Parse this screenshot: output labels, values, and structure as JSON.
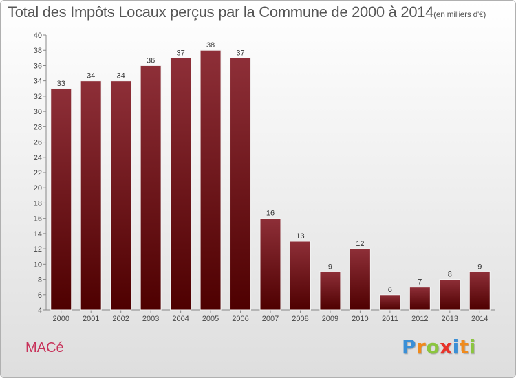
{
  "chart_data": {
    "type": "bar",
    "title": "Total des Impôts Locaux perçus par la Commune de 2000 à 2014",
    "unit_note": "(en milliers d'€)",
    "xlabel": "",
    "ylabel": "",
    "categories": [
      "2000",
      "2001",
      "2002",
      "2003",
      "2004",
      "2005",
      "2006",
      "2007",
      "2008",
      "2009",
      "2010",
      "2011",
      "2012",
      "2013",
      "2014"
    ],
    "values": [
      33,
      34,
      34,
      36,
      37,
      38,
      37,
      16,
      13,
      9,
      12,
      6,
      7,
      8,
      9
    ],
    "ylim": [
      4,
      40
    ],
    "yticks": [
      4,
      6,
      8,
      10,
      12,
      14,
      16,
      18,
      20,
      22,
      24,
      26,
      28,
      30,
      32,
      34,
      36,
      38,
      40
    ],
    "grid": false,
    "bar_color": "#7a1a24"
  },
  "footer": {
    "commune": "MACé",
    "logo_letters": [
      "P",
      "r",
      "o",
      "x",
      "i",
      "t",
      "i"
    ],
    "logo_colors": [
      "#3a8fd6",
      "#f08a1c",
      "#8bc53f",
      "#e8332a",
      "#3a8fd6",
      "#f08a1c",
      "#8bc53f"
    ]
  }
}
